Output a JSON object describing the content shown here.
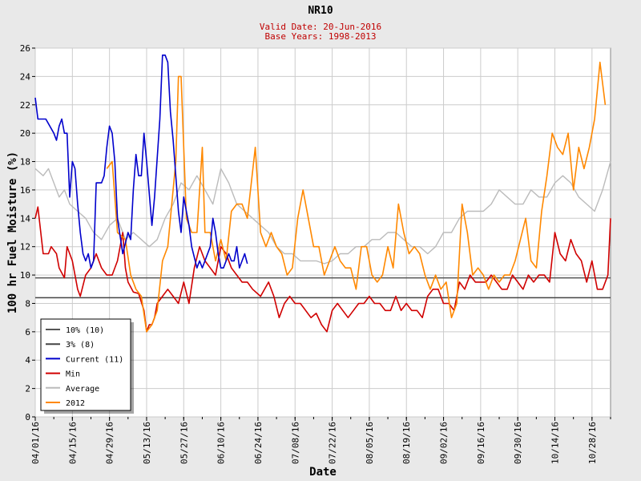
{
  "chart_data": {
    "type": "line",
    "title": "NR10",
    "subtitle_lines": [
      "Valid Date: 20-Jun-2016",
      "Base Years: 1998-2013"
    ],
    "xlabel": "Date",
    "ylabel": "100 hr Fuel Moisture (%)",
    "ylim": [
      0,
      26
    ],
    "yticks": [
      0,
      2,
      4,
      6,
      8,
      10,
      12,
      14,
      16,
      18,
      20,
      22,
      24,
      26
    ],
    "xlim": [
      "2016-04-01",
      "2016-11-04"
    ],
    "xtick_labels": [
      "04/01/16",
      "04/15/16",
      "04/29/16",
      "05/13/16",
      "05/27/16",
      "06/10/16",
      "06/24/16",
      "07/08/16",
      "07/22/16",
      "08/05/16",
      "08/19/16",
      "09/02/16",
      "09/16/16",
      "09/30/16",
      "10/14/16",
      "10/28/16"
    ],
    "grid": true,
    "legend_position": "bottom-left",
    "thresholds": [
      {
        "name": "10% (10)",
        "value": 9.8,
        "color": "#555555"
      },
      {
        "name": "3% (8)",
        "value": 8.4,
        "color": "#444444"
      }
    ],
    "series": [
      {
        "name": "Current (11)",
        "color": "#0000cc",
        "x": [
          "2016-04-01",
          "2016-04-02",
          "2016-04-05",
          "2016-04-08",
          "2016-04-09",
          "2016-04-10",
          "2016-04-11",
          "2016-04-12",
          "2016-04-13",
          "2016-04-14",
          "2016-04-15",
          "2016-04-16",
          "2016-04-17",
          "2016-04-18",
          "2016-04-19",
          "2016-04-20",
          "2016-04-21",
          "2016-04-22",
          "2016-04-23",
          "2016-04-24",
          "2016-04-25",
          "2016-04-26",
          "2016-04-27",
          "2016-04-28",
          "2016-04-29",
          "2016-04-30",
          "2016-05-01",
          "2016-05-02",
          "2016-05-04",
          "2016-05-06",
          "2016-05-07",
          "2016-05-08",
          "2016-05-09",
          "2016-05-10",
          "2016-05-11",
          "2016-05-12",
          "2016-05-13",
          "2016-05-15",
          "2016-05-16",
          "2016-05-18",
          "2016-05-19",
          "2016-05-20",
          "2016-05-21",
          "2016-05-22",
          "2016-05-23",
          "2016-05-24",
          "2016-05-25",
          "2016-05-26",
          "2016-05-27",
          "2016-05-28",
          "2016-05-29",
          "2016-05-30",
          "2016-06-01",
          "2016-06-02",
          "2016-06-03",
          "2016-06-04",
          "2016-06-05",
          "2016-06-06",
          "2016-06-07",
          "2016-06-08",
          "2016-06-09",
          "2016-06-10",
          "2016-06-11",
          "2016-06-12",
          "2016-06-13",
          "2016-06-14",
          "2016-06-15",
          "2016-06-16",
          "2016-06-17",
          "2016-06-18",
          "2016-06-19",
          "2016-06-20"
        ],
        "y": [
          22.5,
          21,
          21,
          20,
          19.5,
          20.5,
          21,
          20,
          20,
          15.5,
          18,
          17.5,
          15,
          13,
          11.5,
          11,
          11.5,
          10.5,
          11,
          16.5,
          16.5,
          16.5,
          17,
          19,
          20.5,
          20,
          18,
          14,
          11.5,
          13,
          12.5,
          16,
          18.5,
          17,
          17,
          20,
          18,
          13.5,
          15.5,
          21,
          25.5,
          25.5,
          25,
          21.5,
          19.5,
          17,
          14.5,
          13,
          15.5,
          14.5,
          13.5,
          12,
          10.5,
          11,
          10.5,
          11,
          11.5,
          12,
          14,
          13,
          11.5,
          10.5,
          10.5,
          11,
          11.5,
          11,
          11,
          12,
          10.5,
          11,
          11.5,
          10.8
        ]
      },
      {
        "name": "Min",
        "color": "#d00000",
        "x": [
          "2016-04-01",
          "2016-04-02",
          "2016-04-04",
          "2016-04-06",
          "2016-04-07",
          "2016-04-09",
          "2016-04-10",
          "2016-04-12",
          "2016-04-13",
          "2016-04-15",
          "2016-04-17",
          "2016-04-18",
          "2016-04-20",
          "2016-04-22",
          "2016-04-24",
          "2016-04-26",
          "2016-04-28",
          "2016-04-30",
          "2016-05-02",
          "2016-05-04",
          "2016-05-05",
          "2016-05-06",
          "2016-05-08",
          "2016-05-10",
          "2016-05-12",
          "2016-05-13",
          "2016-05-14",
          "2016-05-15",
          "2016-05-16",
          "2016-05-17",
          "2016-05-19",
          "2016-05-21",
          "2016-05-23",
          "2016-05-25",
          "2016-05-27",
          "2016-05-29",
          "2016-05-31",
          "2016-06-02",
          "2016-06-04",
          "2016-06-06",
          "2016-06-08",
          "2016-06-10",
          "2016-06-12",
          "2016-06-14",
          "2016-06-16",
          "2016-06-18",
          "2016-06-20",
          "2016-06-22",
          "2016-06-25",
          "2016-06-28",
          "2016-06-30",
          "2016-07-02",
          "2016-07-04",
          "2016-07-06",
          "2016-07-08",
          "2016-07-10",
          "2016-07-12",
          "2016-07-14",
          "2016-07-16",
          "2016-07-18",
          "2016-07-20",
          "2016-07-22",
          "2016-07-24",
          "2016-07-26",
          "2016-07-28",
          "2016-07-30",
          "2016-08-01",
          "2016-08-03",
          "2016-08-05",
          "2016-08-07",
          "2016-08-09",
          "2016-08-11",
          "2016-08-13",
          "2016-08-15",
          "2016-08-17",
          "2016-08-19",
          "2016-08-21",
          "2016-08-23",
          "2016-08-25",
          "2016-08-27",
          "2016-08-29",
          "2016-08-31",
          "2016-09-02",
          "2016-09-04",
          "2016-09-06",
          "2016-09-08",
          "2016-09-10",
          "2016-09-12",
          "2016-09-14",
          "2016-09-16",
          "2016-09-18",
          "2016-09-20",
          "2016-09-22",
          "2016-09-24",
          "2016-09-26",
          "2016-09-28",
          "2016-09-30",
          "2016-10-02",
          "2016-10-04",
          "2016-10-06",
          "2016-10-08",
          "2016-10-10",
          "2016-10-12",
          "2016-10-14",
          "2016-10-16",
          "2016-10-18",
          "2016-10-20",
          "2016-10-22",
          "2016-10-24",
          "2016-10-26",
          "2016-10-28",
          "2016-10-30",
          "2016-11-01",
          "2016-11-03",
          "2016-11-04"
        ],
        "y": [
          14,
          14.8,
          11.5,
          11.5,
          12,
          11.5,
          10.5,
          9.8,
          12,
          11,
          9,
          8.5,
          10,
          10.5,
          11.5,
          10.5,
          10,
          10,
          11,
          13,
          10.5,
          9.5,
          8.8,
          8.7,
          7.5,
          6,
          6.5,
          6.5,
          7,
          8,
          8.5,
          9,
          8.5,
          8,
          9.5,
          8,
          10.5,
          12,
          11,
          10.5,
          10,
          12,
          11.5,
          10.5,
          10,
          9.5,
          9.5,
          9,
          8.5,
          9.5,
          8.5,
          7,
          8,
          8.5,
          8,
          8,
          7.5,
          7,
          7.3,
          6.5,
          6,
          7.5,
          8,
          7.5,
          7,
          7.5,
          8,
          8,
          8.5,
          8,
          8,
          7.5,
          7.5,
          8.5,
          7.5,
          8,
          7.5,
          7.5,
          7,
          8.5,
          9,
          9,
          8,
          8,
          7.5,
          9.5,
          9,
          10,
          9.5,
          9.5,
          9.5,
          10,
          9.5,
          9,
          9,
          10,
          9.5,
          9,
          10,
          9.5,
          10,
          10,
          9.5,
          13,
          11.5,
          11,
          12.5,
          11.5,
          11,
          9.5,
          11,
          9,
          9,
          10,
          14
        ]
      },
      {
        "name": "Average",
        "color": "#bbbbbb",
        "x": [
          "2016-04-01",
          "2016-04-04",
          "2016-04-06",
          "2016-04-08",
          "2016-04-10",
          "2016-04-12",
          "2016-04-14",
          "2016-04-17",
          "2016-04-20",
          "2016-04-23",
          "2016-04-26",
          "2016-04-29",
          "2016-05-02",
          "2016-05-05",
          "2016-05-08",
          "2016-05-11",
          "2016-05-14",
          "2016-05-17",
          "2016-05-20",
          "2016-05-23",
          "2016-05-26",
          "2016-05-29",
          "2016-06-01",
          "2016-06-04",
          "2016-06-07",
          "2016-06-10",
          "2016-06-13",
          "2016-06-16",
          "2016-06-19",
          "2016-06-22",
          "2016-06-25",
          "2016-06-28",
          "2016-07-01",
          "2016-07-04",
          "2016-07-07",
          "2016-07-10",
          "2016-07-13",
          "2016-07-16",
          "2016-07-19",
          "2016-07-22",
          "2016-07-25",
          "2016-07-28",
          "2016-07-31",
          "2016-08-03",
          "2016-08-06",
          "2016-08-09",
          "2016-08-12",
          "2016-08-15",
          "2016-08-18",
          "2016-08-21",
          "2016-08-24",
          "2016-08-27",
          "2016-08-30",
          "2016-09-02",
          "2016-09-05",
          "2016-09-08",
          "2016-09-11",
          "2016-09-14",
          "2016-09-17",
          "2016-09-20",
          "2016-09-23",
          "2016-09-26",
          "2016-09-29",
          "2016-10-02",
          "2016-10-05",
          "2016-10-08",
          "2016-10-11",
          "2016-10-14",
          "2016-10-17",
          "2016-10-20",
          "2016-10-23",
          "2016-10-26",
          "2016-10-29",
          "2016-11-01",
          "2016-11-04"
        ],
        "y": [
          17.5,
          17,
          17.5,
          16.5,
          15.5,
          16,
          15,
          14.5,
          14,
          13,
          12.5,
          13.5,
          14,
          12.5,
          13,
          12.5,
          12,
          12.5,
          14,
          15,
          16.5,
          16,
          17,
          16,
          15,
          17.5,
          16.5,
          15,
          14.5,
          14,
          13.5,
          13,
          12,
          11.5,
          11.5,
          11,
          11,
          11,
          10.8,
          11,
          11.5,
          11.5,
          12,
          12,
          12.5,
          12.5,
          13,
          13,
          12.5,
          12,
          12,
          11.5,
          12,
          13,
          13,
          14,
          14.5,
          14.5,
          14.5,
          15,
          16,
          15.5,
          15,
          15,
          16,
          15.5,
          15.5,
          16.5,
          17,
          16.5,
          15.5,
          15,
          14.5,
          16,
          18
        ]
      },
      {
        "name": "2012",
        "color": "#ff8800",
        "x": [
          "2016-04-28",
          "2016-04-30",
          "2016-05-02",
          "2016-05-05",
          "2016-05-07",
          "2016-05-09",
          "2016-05-11",
          "2016-05-13",
          "2016-05-15",
          "2016-05-17",
          "2016-05-19",
          "2016-05-21",
          "2016-05-22",
          "2016-05-24",
          "2016-05-25",
          "2016-05-26",
          "2016-05-28",
          "2016-05-30",
          "2016-06-01",
          "2016-06-03",
          "2016-06-04",
          "2016-06-06",
          "2016-06-08",
          "2016-06-10",
          "2016-06-12",
          "2016-06-14",
          "2016-06-16",
          "2016-06-18",
          "2016-06-20",
          "2016-06-23",
          "2016-06-25",
          "2016-06-27",
          "2016-06-29",
          "2016-07-01",
          "2016-07-03",
          "2016-07-05",
          "2016-07-07",
          "2016-07-09",
          "2016-07-11",
          "2016-07-13",
          "2016-07-15",
          "2016-07-17",
          "2016-07-19",
          "2016-07-21",
          "2016-07-23",
          "2016-07-25",
          "2016-07-27",
          "2016-07-29",
          "2016-07-31",
          "2016-08-02",
          "2016-08-04",
          "2016-08-06",
          "2016-08-08",
          "2016-08-10",
          "2016-08-12",
          "2016-08-14",
          "2016-08-16",
          "2016-08-18",
          "2016-08-20",
          "2016-08-22",
          "2016-08-24",
          "2016-08-26",
          "2016-08-28",
          "2016-08-30",
          "2016-09-01",
          "2016-09-03",
          "2016-09-05",
          "2016-09-07",
          "2016-09-09",
          "2016-09-11",
          "2016-09-13",
          "2016-09-15",
          "2016-09-17",
          "2016-09-19",
          "2016-09-21",
          "2016-09-23",
          "2016-09-25",
          "2016-09-27",
          "2016-09-29",
          "2016-10-01",
          "2016-10-03",
          "2016-10-05",
          "2016-10-07",
          "2016-10-09",
          "2016-10-11",
          "2016-10-13",
          "2016-10-15",
          "2016-10-17",
          "2016-10-19",
          "2016-10-21",
          "2016-10-23",
          "2016-10-25",
          "2016-10-27",
          "2016-10-29",
          "2016-10-31",
          "2016-11-02"
        ],
        "y": [
          17.5,
          18,
          13,
          12.5,
          10,
          9,
          8.5,
          6,
          6.5,
          7.5,
          11,
          12,
          14,
          18,
          24,
          24,
          14,
          13,
          13,
          19,
          13,
          13,
          11,
          12.5,
          11,
          14.5,
          15,
          15,
          14,
          19,
          13,
          12,
          13,
          12,
          11.5,
          10,
          10.5,
          14,
          16,
          14,
          12,
          12,
          10,
          11,
          12,
          11,
          10.5,
          10.5,
          9,
          12,
          12,
          10,
          9.5,
          10,
          12,
          10.5,
          15,
          13,
          11.5,
          12,
          11.5,
          10,
          9,
          10,
          9,
          9.5,
          7,
          8,
          15,
          13,
          10,
          10.5,
          10,
          9,
          10,
          9.5,
          10,
          10,
          11,
          12.5,
          14,
          11,
          10.5,
          14.5,
          17,
          20,
          19,
          18.5,
          20,
          16,
          19,
          17.5,
          19,
          21,
          25,
          22
        ]
      }
    ]
  }
}
